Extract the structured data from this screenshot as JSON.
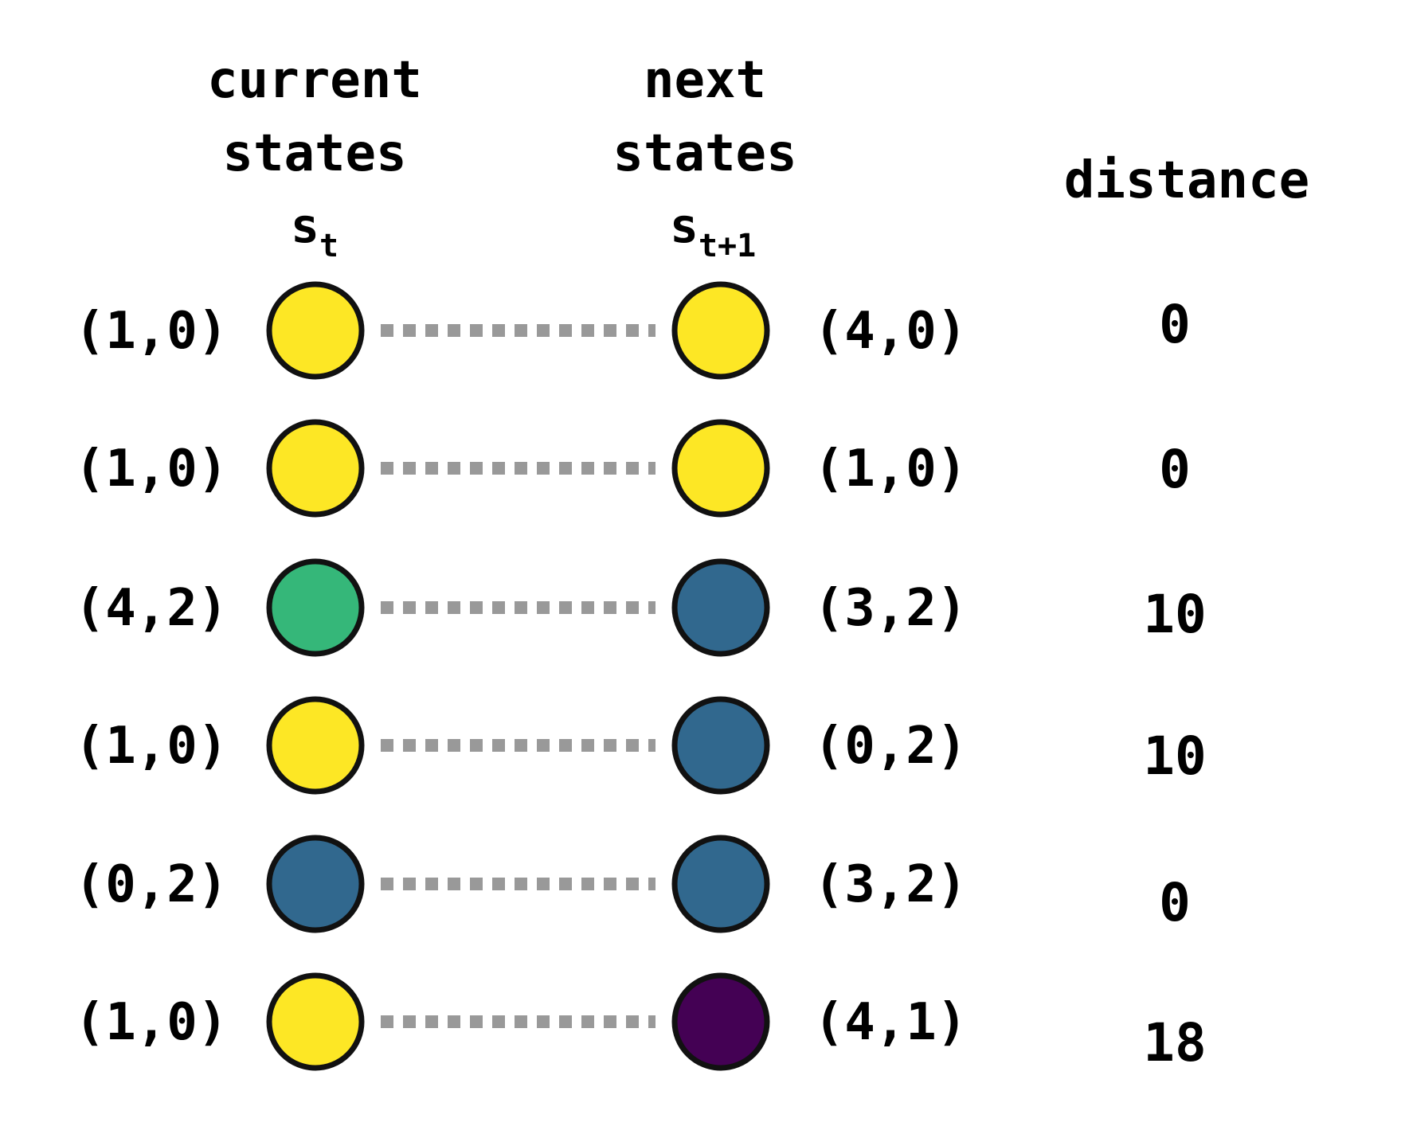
{
  "headers": {
    "current_line1": "current",
    "current_line2": "states",
    "current_symbol": "s",
    "current_subscript": "t",
    "next_line1": "next",
    "next_line2": "states",
    "next_symbol": "s",
    "next_subscript": "t+1",
    "distance": "distance"
  },
  "colors": {
    "yellow": "#fde725",
    "green": "#35b779",
    "blue": "#31688e",
    "purple": "#440154",
    "connector": "#999999",
    "outline": "#111111"
  },
  "rows": [
    {
      "current": "(1,0)",
      "current_color": "yellow",
      "next": "(4,0)",
      "next_color": "yellow",
      "distance": "0"
    },
    {
      "current": "(1,0)",
      "current_color": "yellow",
      "next": "(1,0)",
      "next_color": "yellow",
      "distance": "0"
    },
    {
      "current": "(4,2)",
      "current_color": "green",
      "next": "(3,2)",
      "next_color": "blue",
      "distance": "10"
    },
    {
      "current": "(1,0)",
      "current_color": "yellow",
      "next": "(0,2)",
      "next_color": "blue",
      "distance": "10"
    },
    {
      "current": "(0,2)",
      "current_color": "blue",
      "next": "(3,2)",
      "next_color": "blue",
      "distance": "0"
    },
    {
      "current": "(1,0)",
      "current_color": "yellow",
      "next": "(4,1)",
      "next_color": "purple",
      "distance": "18"
    }
  ]
}
